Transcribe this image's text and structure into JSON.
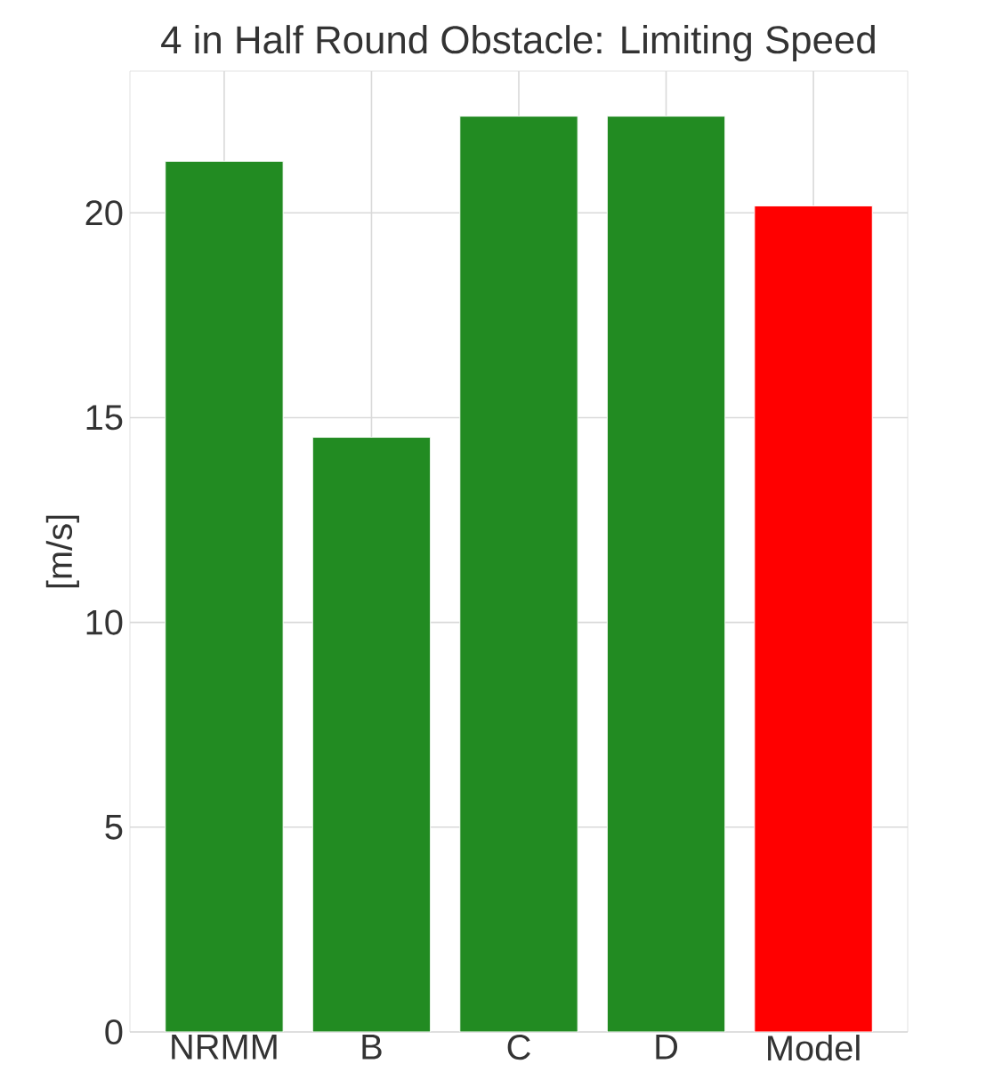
{
  "chart_data": {
    "type": "bar",
    "title": "4 in Half Round Obstacle: Limiting Speed",
    "ylabel": "[m/s]",
    "categories": [
      "NRMM",
      "B",
      "C",
      "D",
      "Model"
    ],
    "values": [
      21.26,
      14.52,
      22.36,
      22.36,
      20.17
    ],
    "colors": [
      "#228b22",
      "#228b22",
      "#228b22",
      "#228b22",
      "#ff0000"
    ],
    "ylim": [
      0,
      23.46
    ],
    "yticks": [
      0,
      5,
      10,
      15,
      20
    ],
    "grid": true
  }
}
